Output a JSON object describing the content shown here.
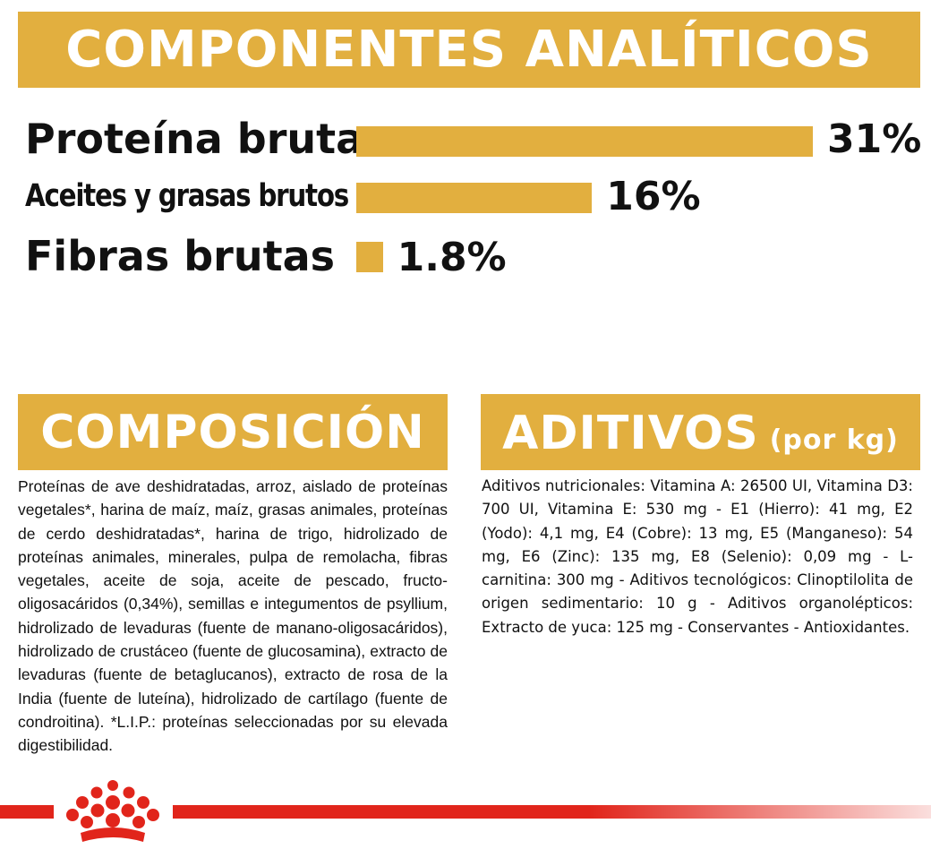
{
  "analytical": {
    "title": "COMPONENTES ANALÍTICOS",
    "rows": [
      {
        "label": "Proteína bruta",
        "value": "31%",
        "percent": 31
      },
      {
        "label": "Aceites y grasas brutos",
        "value": "16%",
        "percent": 16
      },
      {
        "label": "Fibras brutas",
        "value": "1.8%",
        "percent": 1.8
      }
    ]
  },
  "composition": {
    "title": "COMPOSICIÓN",
    "text": "Proteínas de ave deshidratadas, arroz, aislado de proteínas vegetales*, harina de maíz, maíz, grasas animales, proteínas de cerdo deshidratadas*, harina de trigo, hidrolizado de proteínas animales, minerales, pulpa de remolacha, fibras vegetales, aceite de soja, aceite de pescado, fructo-oligosacáridos (0,34%), semillas e integumentos de psyllium, hidrolizado de levaduras (fuente de manano-oligosacáridos), hidrolizado de crustáceo (fuente de glucosamina), extracto de levaduras (fuente de betaglucanos), extracto de rosa de la India (fuente de luteína), hidrolizado de cartílago (fuente de condroitina). *L.I.P.: proteínas seleccionadas por su elevada digestibilidad."
  },
  "additives": {
    "title": "ADITIVOS",
    "title_suffix": "(por kg)",
    "text": "Aditivos nutricionales: Vitamina A: 26500 UI, Vitamina D3: 700 UI, Vitamina E: 530 mg - E1 (Hierro): 41 mg, E2 (Yodo): 4,1 mg, E4 (Cobre): 13 mg, E5 (Manganeso): 54 mg, E6 (Zinc): 135 mg, E8 (Selenio): 0,09 mg - L-carnitina: 300 mg - Aditivos tecnológicos: Clinoptilolita de origen sedimentario: 10 g - Aditivos organolépticos: Extracto de yuca: 125 mg - Conservantes - Antioxidantes."
  },
  "footer": {
    "logo_icon": "crown-icon"
  },
  "colors": {
    "accent": "#e2af3f",
    "brand_red": "#e1251b",
    "text": "#111111"
  }
}
